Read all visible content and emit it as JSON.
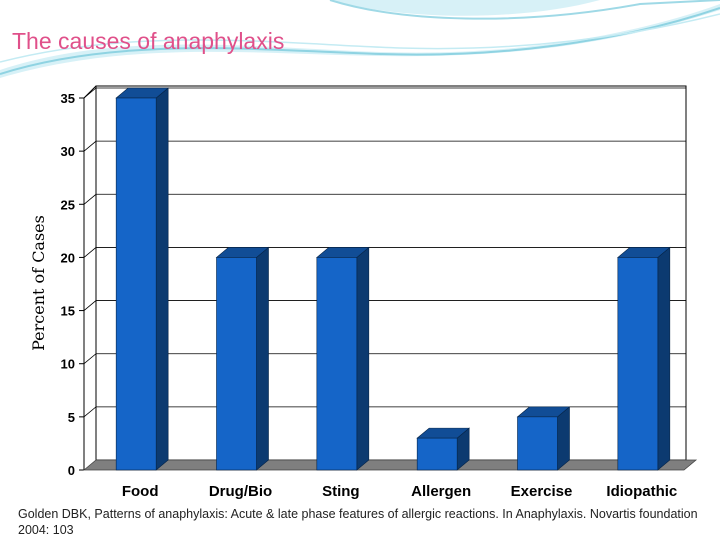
{
  "slide": {
    "title": "The causes of anaphylaxis",
    "citation": "Golden DBK, Patterns of anaphylaxis: Acute & late phase features of allergic reactions. In Anaphylaxis. Novartis foundation 2004: 103"
  },
  "colors": {
    "title": "#e0508a",
    "bar_front": "#1565c8",
    "bar_side": "#0c3a70",
    "bar_top": "#114d96",
    "floor": "#7f7f7f",
    "decor_wave": "#9fd9e6"
  },
  "chart_data": {
    "type": "bar",
    "categories": [
      "Food",
      "Drug/Bio",
      "Sting",
      "Allergen",
      "Exercise",
      "Idiopathic"
    ],
    "values": [
      35,
      20,
      20,
      3,
      5,
      20
    ],
    "ylabel": "Percent of Cases",
    "ylim": [
      0,
      35
    ],
    "yticks": [
      0,
      5,
      10,
      15,
      20,
      25,
      30,
      35
    ],
    "grid": true,
    "legend": "none",
    "style": "3d"
  }
}
